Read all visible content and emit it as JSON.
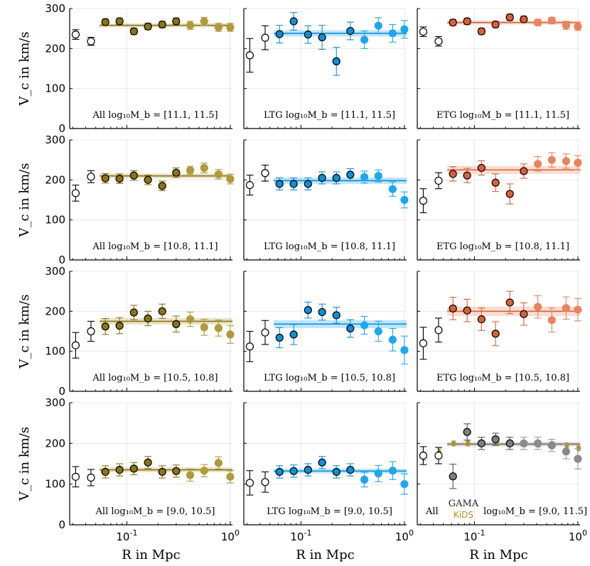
{
  "chart_data": {
    "type": "scatter",
    "title": "",
    "xlabel": "R in Mpc",
    "ylabel": "V_c in km/s",
    "xscale": "log",
    "xlim": [
      0.028,
      1.05
    ],
    "ylim": [
      0,
      300
    ],
    "yticks": [
      0,
      100,
      200,
      300
    ],
    "xticks": [
      {
        "value": 0.1,
        "label": "10^-1"
      },
      {
        "value": 1,
        "label": "10^0"
      }
    ],
    "grid": true,
    "x": [
      0.032,
      0.045,
      0.062,
      0.085,
      0.117,
      0.16,
      0.22,
      0.3,
      0.41,
      0.56,
      0.77,
      1.0
    ],
    "rows": [
      "[11.1, 11.5]",
      "[10.8, 11.1]",
      "[10.5, 10.8]",
      "[9.0, 10.5]"
    ],
    "columns": [
      {
        "name": "All",
        "color": "#b09a3b",
        "dark": "#8a7414"
      },
      {
        "name": "LTG",
        "color": "#1ea7ee",
        "dark": "#0e8fd8"
      },
      {
        "name": "ETG",
        "color": "#e8845e",
        "dark": "#d9613a"
      }
    ],
    "panels": [
      {
        "label": "All log₁₀M_b = [11.1, 11.5]",
        "values": [
          235,
          218,
          266,
          268,
          243,
          255,
          260,
          268,
          258,
          268,
          253,
          253
        ],
        "errors": [
          12,
          10,
          8,
          8,
          8,
          8,
          8,
          8,
          10,
          10,
          10,
          10
        ],
        "fit": 258,
        "band": 5
      },
      {
        "label": "LTG log₁₀M_b = [11.1, 11.5]",
        "values": [
          183,
          227,
          236,
          268,
          235,
          228,
          168,
          244,
          222,
          257,
          238,
          248
        ],
        "errors": [
          42,
          30,
          22,
          22,
          22,
          30,
          35,
          22,
          22,
          20,
          22,
          22
        ],
        "fit": 238,
        "band": 8
      },
      {
        "label": "ETG log₁₀M_b = [11.1, 11.5]",
        "values": [
          242,
          218,
          265,
          268,
          243,
          260,
          278,
          273,
          265,
          270,
          258,
          255
        ],
        "errors": [
          12,
          12,
          8,
          8,
          8,
          8,
          8,
          8,
          8,
          8,
          10,
          10
        ],
        "fit": 265,
        "band": 5
      },
      {
        "label": "All log₁₀M_b = [10.8, 11.1]",
        "values": [
          167,
          208,
          204,
          203,
          211,
          200,
          185,
          218,
          224,
          230,
          214,
          202
        ],
        "errors": [
          20,
          15,
          12,
          12,
          12,
          12,
          12,
          12,
          10,
          12,
          12,
          12
        ],
        "fit": 210,
        "band": 6
      },
      {
        "label": "LTG log₁₀M_b = [10.8, 11.1]",
        "values": [
          187,
          217,
          190,
          190,
          190,
          205,
          205,
          213,
          207,
          210,
          177,
          150
        ],
        "errors": [
          25,
          20,
          15,
          15,
          15,
          15,
          15,
          15,
          15,
          15,
          18,
          20
        ],
        "fit": 198,
        "band": 8
      },
      {
        "label": "ETG log₁₀M_b = [10.8, 11.1]",
        "values": [
          148,
          198,
          215,
          211,
          230,
          193,
          165,
          222,
          240,
          250,
          247,
          243
        ],
        "errors": [
          30,
          20,
          18,
          18,
          18,
          22,
          25,
          18,
          18,
          18,
          18,
          18
        ],
        "fit": 225,
        "band": 10
      },
      {
        "label": "All log₁₀M_b = [10.5, 10.8]",
        "values": [
          115,
          150,
          162,
          164,
          197,
          182,
          200,
          168,
          180,
          160,
          158,
          142
        ],
        "errors": [
          32,
          25,
          20,
          20,
          18,
          18,
          18,
          20,
          18,
          20,
          20,
          22
        ],
        "fit": 175,
        "band": 8
      },
      {
        "label": "LTG log₁₀M_b = [10.5, 10.8]",
        "values": [
          112,
          147,
          134,
          142,
          203,
          198,
          190,
          157,
          165,
          150,
          129,
          103
        ],
        "errors": [
          38,
          30,
          25,
          25,
          20,
          20,
          20,
          22,
          22,
          25,
          28,
          35
        ],
        "fit": 168,
        "band": 10
      },
      {
        "label": "ETG log₁₀M_b = [10.5, 10.8]",
        "values": [
          120,
          153,
          207,
          202,
          180,
          144,
          222,
          193,
          211,
          178,
          208,
          204
        ],
        "errors": [
          40,
          30,
          28,
          28,
          28,
          30,
          28,
          28,
          28,
          30,
          28,
          28
        ],
        "fit": 200,
        "band": 12
      },
      {
        "label": "All log₁₀M_b = [9.0, 10.5]",
        "values": [
          118,
          116,
          130,
          135,
          138,
          153,
          130,
          132,
          122,
          133,
          152,
          118
        ],
        "errors": [
          25,
          20,
          15,
          15,
          15,
          15,
          15,
          15,
          15,
          15,
          15,
          15
        ],
        "fit": 135,
        "band": 6
      },
      {
        "label": "LTG log₁₀M_b = [9.0, 10.5]",
        "values": [
          103,
          105,
          130,
          132,
          135,
          153,
          130,
          135,
          111,
          126,
          133,
          100
        ],
        "errors": [
          30,
          25,
          15,
          15,
          15,
          15,
          15,
          15,
          18,
          20,
          22,
          25
        ],
        "fit": 132,
        "band": 6
      },
      {
        "label": "All log₁₀M_b = [9.0, 11.5]",
        "values": [
          170,
          170,
          119,
          228,
          200,
          210,
          200,
          200,
          200,
          195,
          180,
          162
        ],
        "errors": [
          22,
          20,
          30,
          20,
          15,
          15,
          15,
          15,
          15,
          15,
          18,
          25
        ],
        "fit": 198,
        "band": 6,
        "kids": [
          168,
          178,
          200,
          200,
          200,
          203,
          200,
          198,
          197,
          198,
          195,
          188
        ],
        "kids_errors": [
          10,
          8,
          6,
          6,
          6,
          6,
          6,
          6,
          6,
          6,
          6,
          6
        ],
        "legend": [
          "GAMA",
          "KiDS"
        ],
        "legend_prefix": "All",
        "legend_suffix": "log₁₀M_b = [9.0, 11.5]"
      }
    ]
  }
}
